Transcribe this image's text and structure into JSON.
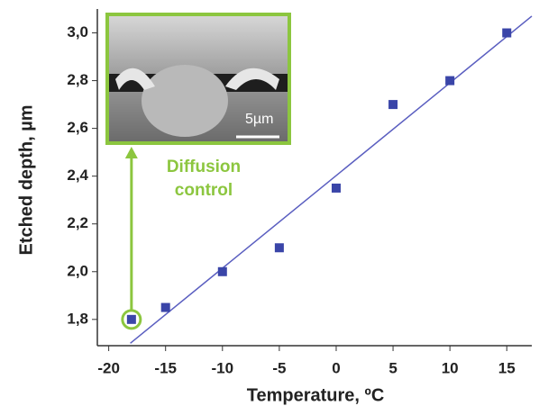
{
  "chart_data": {
    "type": "scatter",
    "x_label": "Temperature, ºC",
    "y_label": "Etched depth, µm",
    "xlim": [
      -21,
      17.2
    ],
    "ylim": [
      1.69,
      3.1
    ],
    "xticks": [
      -20,
      -15,
      -10,
      -5,
      0,
      5,
      10,
      15
    ],
    "yticks": [
      {
        "value": 1.8,
        "label": "1,8"
      },
      {
        "value": 2.0,
        "label": "2,0"
      },
      {
        "value": 2.2,
        "label": "2,2"
      },
      {
        "value": 2.4,
        "label": "2,4"
      },
      {
        "value": 2.6,
        "label": "2,6"
      },
      {
        "value": 2.8,
        "label": "2,8"
      },
      {
        "value": 3.0,
        "label": "3,0"
      }
    ],
    "series": [
      {
        "color": "#3a45a8",
        "x": [
          -18,
          -15,
          -10,
          -5,
          0,
          5,
          10,
          15
        ],
        "values": [
          1.8,
          1.85,
          2.0,
          2.1,
          2.35,
          2.7,
          2.8,
          3.0
        ]
      }
    ],
    "fit_line": {
      "color": "#5a5ec0",
      "x": [
        -18.1,
        17.2
      ],
      "values": [
        1.7,
        3.07
      ]
    },
    "annotation_lines": [
      "Diffusion",
      "control"
    ],
    "annotation_color": "#8cc63f",
    "inset_label": "5µm"
  }
}
